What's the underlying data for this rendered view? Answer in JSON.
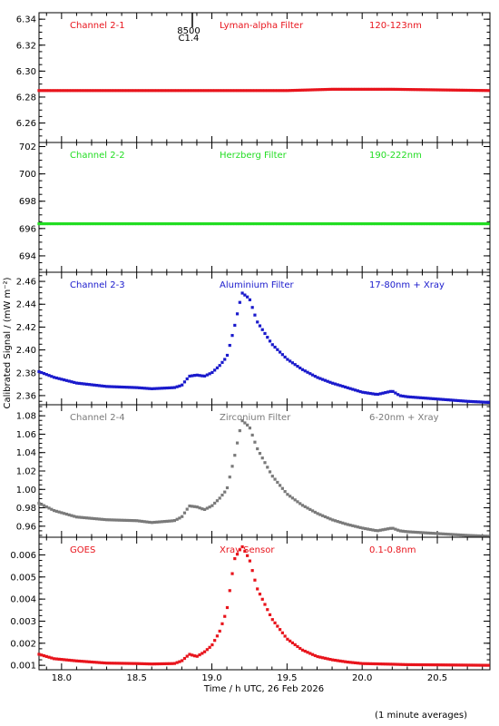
{
  "footer_note": "(1 minute averages)",
  "x_axis": {
    "label": "Time / h UTC, 26 Feb 2026",
    "range": [
      17.85,
      20.85
    ],
    "ticks": [
      "18.0",
      "18.5",
      "19.0",
      "19.5",
      "20.0",
      "20.5"
    ]
  },
  "y_axis_label": "Calibrated Signal / (mW m⁻²)",
  "flare_marker": {
    "x": 18.87,
    "label_top": "8500",
    "label_bottom": "C1.4"
  },
  "chart_data": [
    {
      "type": "scatter",
      "channel": "Channel 2-1",
      "filter": "Lyman-alpha Filter",
      "band": "120-123nm",
      "color": "#e8141c",
      "ylim": [
        6.245,
        6.345
      ],
      "yticks": [
        "6.26",
        "6.28",
        "6.30",
        "6.32",
        "6.34"
      ],
      "x": [
        17.85,
        18.5,
        19.0,
        19.5,
        19.8,
        20.2,
        20.85
      ],
      "values": [
        6.285,
        6.285,
        6.285,
        6.285,
        6.286,
        6.286,
        6.285
      ]
    },
    {
      "type": "scatter",
      "channel": "Channel 2-2",
      "filter": "Herzberg Filter",
      "band": "190-222nm",
      "color": "#22dd22",
      "ylim": [
        692.8,
        702.3
      ],
      "yticks": [
        "694",
        "696",
        "698",
        "700",
        "702"
      ],
      "x": [
        17.85,
        18.5,
        19.0,
        19.5,
        20.0,
        20.85
      ],
      "values": [
        696.35,
        696.35,
        696.35,
        696.35,
        696.35,
        696.35
      ]
    },
    {
      "type": "scatter",
      "channel": "Channel 2-3",
      "filter": "Aluminium Filter",
      "band": "17-80nm + Xray",
      "color": "#1a1acc",
      "ylim": [
        2.352,
        2.468
      ],
      "yticks": [
        "2.36",
        "2.38",
        "2.40",
        "2.42",
        "2.44",
        "2.46"
      ],
      "x": [
        17.85,
        17.95,
        18.1,
        18.3,
        18.5,
        18.6,
        18.75,
        18.8,
        18.85,
        18.9,
        18.95,
        19.0,
        19.05,
        19.1,
        19.15,
        19.2,
        19.25,
        19.3,
        19.4,
        19.5,
        19.6,
        19.7,
        19.8,
        19.9,
        20.0,
        20.1,
        20.2,
        20.25,
        20.3,
        20.5,
        20.7,
        20.85
      ],
      "values": [
        2.381,
        2.376,
        2.371,
        2.368,
        2.367,
        2.366,
        2.367,
        2.369,
        2.377,
        2.378,
        2.377,
        2.38,
        2.386,
        2.394,
        2.42,
        2.45,
        2.445,
        2.425,
        2.405,
        2.392,
        2.383,
        2.376,
        2.371,
        2.367,
        2.363,
        2.361,
        2.364,
        2.36,
        2.359,
        2.357,
        2.355,
        2.354
      ]
    },
    {
      "type": "scatter",
      "channel": "Channel 2-4",
      "filter": "Zirconium Filter",
      "band": "6-20nm + Xray",
      "color": "#7a7a7a",
      "ylim": [
        0.948,
        1.092
      ],
      "yticks": [
        "0.96",
        "0.98",
        "1.00",
        "1.02",
        "1.04",
        "1.06",
        "1.08"
      ],
      "x": [
        17.85,
        17.95,
        18.1,
        18.3,
        18.5,
        18.6,
        18.75,
        18.8,
        18.85,
        18.9,
        18.95,
        19.0,
        19.05,
        19.1,
        19.15,
        19.2,
        19.25,
        19.3,
        19.4,
        19.5,
        19.6,
        19.7,
        19.8,
        19.9,
        20.0,
        20.1,
        20.2,
        20.25,
        20.3,
        20.5,
        20.7,
        20.85
      ],
      "values": [
        0.985,
        0.977,
        0.97,
        0.967,
        0.966,
        0.964,
        0.966,
        0.97,
        0.982,
        0.981,
        0.978,
        0.982,
        0.99,
        1.0,
        1.035,
        1.075,
        1.068,
        1.045,
        1.015,
        0.995,
        0.983,
        0.974,
        0.967,
        0.962,
        0.958,
        0.955,
        0.958,
        0.955,
        0.954,
        0.952,
        0.95,
        0.949
      ]
    },
    {
      "type": "scatter",
      "channel": "GOES",
      "filter": "Xray Sensor",
      "band": "0.1-0.8nm",
      "color": "#e8141c",
      "ylim": [
        0.0008,
        0.0068
      ],
      "yticks": [
        "0.001",
        "0.002",
        "0.003",
        "0.004",
        "0.005",
        "0.006"
      ],
      "x": [
        17.85,
        17.95,
        18.1,
        18.3,
        18.5,
        18.6,
        18.75,
        18.8,
        18.85,
        18.9,
        18.95,
        19.0,
        19.05,
        19.1,
        19.15,
        19.2,
        19.25,
        19.3,
        19.4,
        19.5,
        19.6,
        19.7,
        19.8,
        19.9,
        20.0,
        20.2,
        20.3,
        20.5,
        20.85
      ],
      "values": [
        0.0015,
        0.0013,
        0.0012,
        0.0011,
        0.00108,
        0.00106,
        0.00108,
        0.0012,
        0.0015,
        0.0014,
        0.0016,
        0.0019,
        0.0025,
        0.0035,
        0.0058,
        0.0064,
        0.0058,
        0.0045,
        0.0031,
        0.0022,
        0.0017,
        0.0014,
        0.00125,
        0.00115,
        0.00108,
        0.00105,
        0.00103,
        0.00102,
        0.001
      ]
    }
  ]
}
